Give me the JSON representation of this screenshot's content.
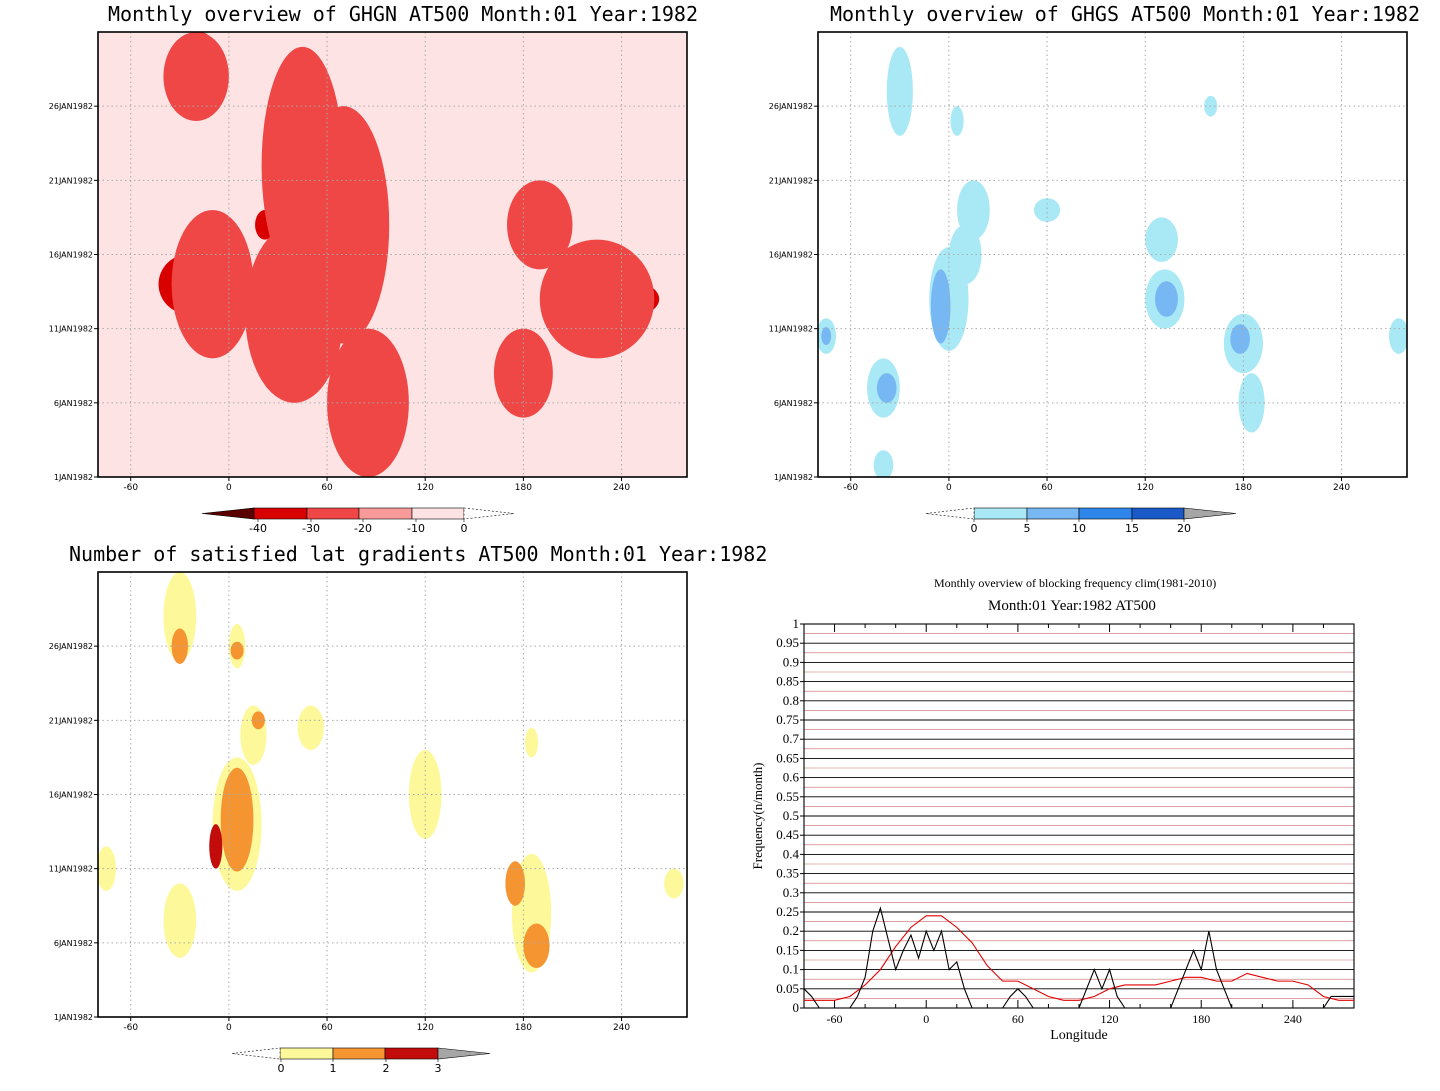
{
  "colors": {
    "red_scale": [
      "#5a0000",
      "#d90000",
      "#ef4646",
      "#f99a9a",
      "#fde3e3",
      "#ffffff"
    ],
    "blue_scale": [
      "#ffffff",
      "#a9e8f5",
      "#77b8f4",
      "#2f86ea",
      "#1a59c8",
      "#a6a6a6"
    ],
    "yellow_scale": [
      "#ffffff",
      "#fdf99a",
      "#f59532",
      "#c20b0b",
      "#a6a6a6"
    ],
    "clim_line": "#e00000",
    "obs_line": "#000000"
  },
  "chart_data": [
    {
      "id": "ghgn",
      "type": "heatmap",
      "title": "Monthly overview of GHGN AT500 Month:01 Year:1982",
      "x_ticks": [
        "-60",
        "0",
        "60",
        "120",
        "180",
        "240"
      ],
      "y_ticks": [
        "1JAN1982",
        "6JAN1982",
        "11JAN1982",
        "16JAN1982",
        "21JAN1982",
        "26JAN1982"
      ],
      "xlim": [
        -80,
        280
      ],
      "ylim": [
        1,
        31
      ],
      "legend_labels": [
        "-40",
        "-30",
        "-20",
        "-10",
        "0"
      ],
      "blobs": [
        {
          "lon": 45,
          "day": 22,
          "rx": 25,
          "ry": 8,
          "level": 2
        },
        {
          "lon": 70,
          "day": 18,
          "rx": 28,
          "ry": 8,
          "level": 2
        },
        {
          "lon": 40,
          "day": 12,
          "rx": 30,
          "ry": 6,
          "level": 2
        },
        {
          "lon": -10,
          "day": 14,
          "rx": 25,
          "ry": 5,
          "level": 2
        },
        {
          "lon": 85,
          "day": 6,
          "rx": 25,
          "ry": 5,
          "level": 2
        },
        {
          "lon": 225,
          "day": 13,
          "rx": 35,
          "ry": 4,
          "level": 2
        },
        {
          "lon": 180,
          "day": 8,
          "rx": 18,
          "ry": 3,
          "level": 2
        },
        {
          "lon": -20,
          "day": 28,
          "rx": 20,
          "ry": 3,
          "level": 2
        },
        {
          "lon": 190,
          "day": 18,
          "rx": 20,
          "ry": 3,
          "level": 2
        },
        {
          "lon": -25,
          "day": 14,
          "rx": 18,
          "ry": 2,
          "level": 1
        },
        {
          "lon": 82,
          "day": 7,
          "rx": 8,
          "ry": 2,
          "level": 1
        },
        {
          "lon": 245,
          "day": 13,
          "rx": 18,
          "ry": 1.2,
          "level": 1
        },
        {
          "lon": -18,
          "day": 29,
          "rx": 12,
          "ry": 2,
          "level": 1
        },
        {
          "lon": 22,
          "day": 18,
          "rx": 6,
          "ry": 1,
          "level": 1
        }
      ]
    },
    {
      "id": "ghgs",
      "type": "heatmap",
      "title": "Monthly overview of GHGS AT500 Month:01 Year:1982",
      "x_ticks": [
        "-60",
        "0",
        "60",
        "120",
        "180",
        "240"
      ],
      "y_ticks": [
        "1JAN1982",
        "6JAN1982",
        "11JAN1982",
        "16JAN1982",
        "21JAN1982",
        "26JAN1982"
      ],
      "xlim": [
        -80,
        280
      ],
      "ylim": [
        1,
        31
      ],
      "legend_labels": [
        "0",
        "5",
        "10",
        "15",
        "20"
      ],
      "blobs": [
        {
          "lon": -30,
          "day": 27,
          "rx": 8,
          "ry": 3,
          "level": 1
        },
        {
          "lon": 5,
          "day": 25,
          "rx": 4,
          "ry": 1,
          "level": 1
        },
        {
          "lon": 160,
          "day": 26,
          "rx": 4,
          "ry": 0.7,
          "level": 1
        },
        {
          "lon": 15,
          "day": 19,
          "rx": 10,
          "ry": 2,
          "level": 1
        },
        {
          "lon": 60,
          "day": 19,
          "rx": 8,
          "ry": 0.8,
          "level": 1
        },
        {
          "lon": 0,
          "day": 13,
          "rx": 12,
          "ry": 3.5,
          "level": 1
        },
        {
          "lon": 10,
          "day": 16,
          "rx": 10,
          "ry": 2,
          "level": 1
        },
        {
          "lon": 130,
          "day": 17,
          "rx": 10,
          "ry": 1.5,
          "level": 1
        },
        {
          "lon": 132,
          "day": 13,
          "rx": 12,
          "ry": 2,
          "level": 1
        },
        {
          "lon": 180,
          "day": 10,
          "rx": 12,
          "ry": 2,
          "level": 1
        },
        {
          "lon": 185,
          "day": 6,
          "rx": 8,
          "ry": 2,
          "level": 1
        },
        {
          "lon": -40,
          "day": 7,
          "rx": 10,
          "ry": 2,
          "level": 1
        },
        {
          "lon": -75,
          "day": 10.5,
          "rx": 6,
          "ry": 1.2,
          "level": 1
        },
        {
          "lon": 275,
          "day": 10.5,
          "rx": 6,
          "ry": 1.2,
          "level": 1
        },
        {
          "lon": -40,
          "day": 1.8,
          "rx": 6,
          "ry": 1,
          "level": 1
        },
        {
          "lon": -5,
          "day": 12.5,
          "rx": 6,
          "ry": 2.5,
          "level": 2
        },
        {
          "lon": -38,
          "day": 7,
          "rx": 6,
          "ry": 1,
          "level": 2
        },
        {
          "lon": 133,
          "day": 13,
          "rx": 7,
          "ry": 1.2,
          "level": 2
        },
        {
          "lon": 178,
          "day": 10.3,
          "rx": 6,
          "ry": 1,
          "level": 2
        },
        {
          "lon": -75,
          "day": 10.5,
          "rx": 3,
          "ry": 0.6,
          "level": 2
        }
      ]
    },
    {
      "id": "lat_gradients",
      "type": "heatmap",
      "title": "Number of satisfied lat gradients AT500 Month:01 Year:1982",
      "x_ticks": [
        "-60",
        "0",
        "60",
        "120",
        "180",
        "240"
      ],
      "y_ticks": [
        "1JAN1982",
        "6JAN1982",
        "11JAN1982",
        "16JAN1982",
        "21JAN1982",
        "26JAN1982"
      ],
      "xlim": [
        -80,
        280
      ],
      "ylim": [
        1,
        31
      ],
      "legend_labels": [
        "0",
        "1",
        "2",
        "3"
      ],
      "blobs": [
        {
          "lon": -30,
          "day": 28,
          "rx": 10,
          "ry": 3,
          "level": 1
        },
        {
          "lon": 5,
          "day": 26,
          "rx": 5,
          "ry": 1.5,
          "level": 1
        },
        {
          "lon": 15,
          "day": 20,
          "rx": 8,
          "ry": 2,
          "level": 1
        },
        {
          "lon": 50,
          "day": 20.5,
          "rx": 8,
          "ry": 1.5,
          "level": 1
        },
        {
          "lon": 185,
          "day": 19.5,
          "rx": 4,
          "ry": 1,
          "level": 1
        },
        {
          "lon": 120,
          "day": 16,
          "rx": 10,
          "ry": 3,
          "level": 1
        },
        {
          "lon": 5,
          "day": 14,
          "rx": 15,
          "ry": 4.5,
          "level": 1
        },
        {
          "lon": -30,
          "day": 7.5,
          "rx": 10,
          "ry": 2.5,
          "level": 1
        },
        {
          "lon": -75,
          "day": 11,
          "rx": 6,
          "ry": 1.5,
          "level": 1
        },
        {
          "lon": 272,
          "day": 10,
          "rx": 6,
          "ry": 1,
          "level": 1
        },
        {
          "lon": 185,
          "day": 8,
          "rx": 12,
          "ry": 4,
          "level": 1
        },
        {
          "lon": -30,
          "day": 26,
          "rx": 5,
          "ry": 1.2,
          "level": 2
        },
        {
          "lon": 5,
          "day": 25.7,
          "rx": 4,
          "ry": 0.6,
          "level": 2
        },
        {
          "lon": 18,
          "day": 21,
          "rx": 4,
          "ry": 0.6,
          "level": 2
        },
        {
          "lon": 5,
          "day": 14.3,
          "rx": 10,
          "ry": 3.5,
          "level": 2
        },
        {
          "lon": 175,
          "day": 10,
          "rx": 6,
          "ry": 1.5,
          "level": 2
        },
        {
          "lon": 188,
          "day": 5.8,
          "rx": 8,
          "ry": 1.5,
          "level": 2
        },
        {
          "lon": -8,
          "day": 12.5,
          "rx": 4,
          "ry": 1.5,
          "level": 3
        }
      ]
    },
    {
      "id": "blocking_frequency",
      "type": "line",
      "title": "Monthly overview of blocking frequency clim(1981-2010)",
      "subtitle": "Month:01 Year:1982  AT500",
      "xlabel": "Longitude",
      "ylabel": "Frequency(n/month)",
      "xlim": [
        -80,
        280
      ],
      "ylim": [
        0,
        1
      ],
      "x_ticks": [
        "-60",
        "0",
        "60",
        "120",
        "180",
        "240"
      ],
      "y_ticks": [
        "0",
        "0.05",
        "0.1",
        "0.15",
        "0.2",
        "0.25",
        "0.3",
        "0.35",
        "0.4",
        "0.45",
        "0.5",
        "0.55",
        "0.6",
        "0.65",
        "0.7",
        "0.75",
        "0.8",
        "0.85",
        "0.9",
        "0.95",
        "1"
      ],
      "grid": true,
      "series": [
        {
          "role": "climatology",
          "x": [
            -80,
            -60,
            -50,
            -40,
            -30,
            -20,
            -10,
            0,
            10,
            20,
            30,
            40,
            50,
            60,
            70,
            80,
            90,
            100,
            110,
            120,
            130,
            140,
            150,
            160,
            170,
            180,
            190,
            200,
            210,
            220,
            230,
            240,
            250,
            260,
            270,
            280
          ],
          "y": [
            0.02,
            0.02,
            0.03,
            0.06,
            0.1,
            0.16,
            0.21,
            0.24,
            0.24,
            0.21,
            0.17,
            0.11,
            0.07,
            0.07,
            0.05,
            0.03,
            0.02,
            0.02,
            0.03,
            0.05,
            0.06,
            0.06,
            0.06,
            0.07,
            0.08,
            0.08,
            0.07,
            0.07,
            0.09,
            0.08,
            0.07,
            0.07,
            0.06,
            0.03,
            0.02,
            0.02
          ]
        },
        {
          "role": "observed",
          "x": [
            -80,
            -75,
            -70,
            -60,
            -50,
            -45,
            -40,
            -35,
            -30,
            -25,
            -20,
            -15,
            -10,
            -5,
            0,
            5,
            10,
            15,
            20,
            25,
            30,
            35,
            40,
            45,
            50,
            55,
            60,
            65,
            70,
            80,
            90,
            100,
            105,
            110,
            115,
            120,
            125,
            130,
            140,
            150,
            160,
            165,
            170,
            175,
            180,
            185,
            190,
            195,
            200,
            210,
            220,
            230,
            240,
            250,
            260,
            265,
            270,
            280
          ],
          "y": [
            0.05,
            0.03,
            0.0,
            0.0,
            0.0,
            0.03,
            0.08,
            0.2,
            0.26,
            0.18,
            0.1,
            0.15,
            0.19,
            0.13,
            0.2,
            0.15,
            0.2,
            0.1,
            0.12,
            0.05,
            0.0,
            0.0,
            0.0,
            0.0,
            0.0,
            0.03,
            0.05,
            0.03,
            0.0,
            0.0,
            0.0,
            0.0,
            0.05,
            0.1,
            0.05,
            0.1,
            0.03,
            0.0,
            0.0,
            0.0,
            0.0,
            0.05,
            0.1,
            0.15,
            0.1,
            0.2,
            0.1,
            0.05,
            0.0,
            0.0,
            0.0,
            0.0,
            0.0,
            0.0,
            0.0,
            0.03,
            0.03,
            0.03
          ]
        }
      ]
    }
  ]
}
